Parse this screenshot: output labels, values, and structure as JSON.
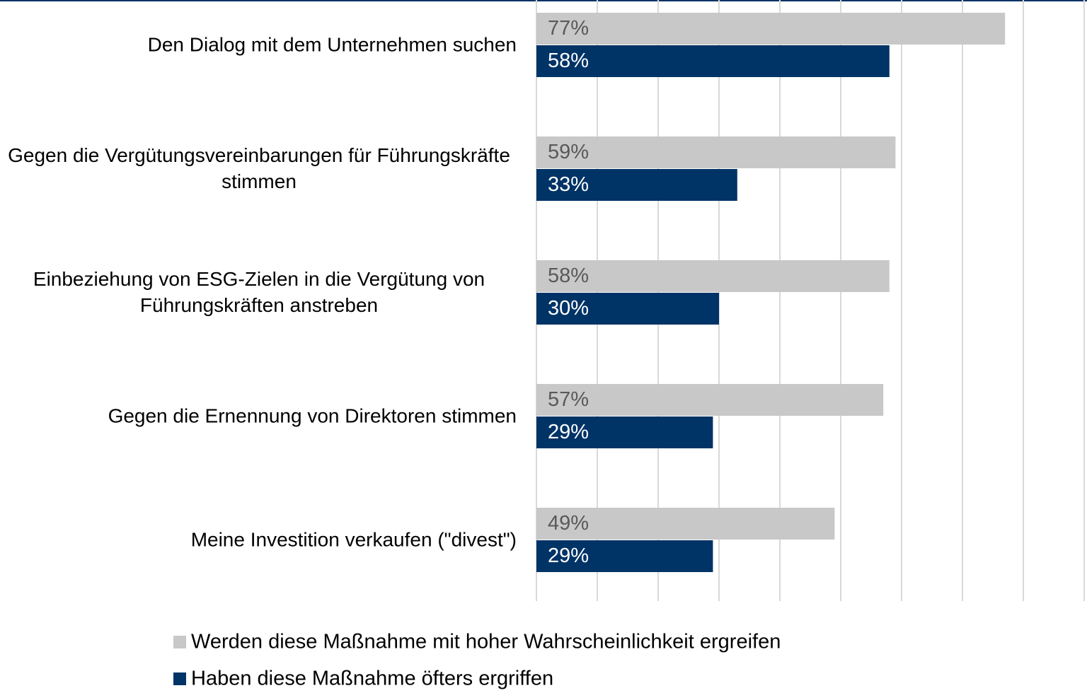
{
  "chart_data": {
    "type": "bar",
    "orientation": "horizontal",
    "categories": [
      "Den Dialog mit dem Unternehmen suchen",
      "Gegen die Vergütungsvereinbarungen für Führungskräfte stimmen",
      "Einbeziehung von ESG-Zielen in die Vergütung von Führungskräften anstreben",
      "Gegen die Ernennung von Direktoren stimmen",
      "Meine Investition verkaufen (\"divest\")"
    ],
    "series": [
      {
        "name": "Werden diese Maßnahme mit hoher Wahrscheinlichkeit ergreifen",
        "color": "#c8c8c8",
        "label_color": "#595959",
        "values": [
          77,
          59,
          58,
          57,
          49
        ],
        "value_labels": [
          "77%",
          "59%",
          "58%",
          "57%",
          "49%"
        ]
      },
      {
        "name": "Haben diese Maßnahme öfters ergriffen",
        "color": "#003366",
        "label_color": "#ffffff",
        "values": [
          58,
          33,
          30,
          29,
          29
        ],
        "value_labels": [
          "58%",
          "33%",
          "30%",
          "29%",
          "29%"
        ]
      }
    ],
    "xlim": [
      0,
      90
    ],
    "xticks": [
      0,
      10,
      20,
      30,
      40,
      50,
      60,
      70,
      80,
      90
    ],
    "grid": true,
    "legend": "bottom"
  }
}
